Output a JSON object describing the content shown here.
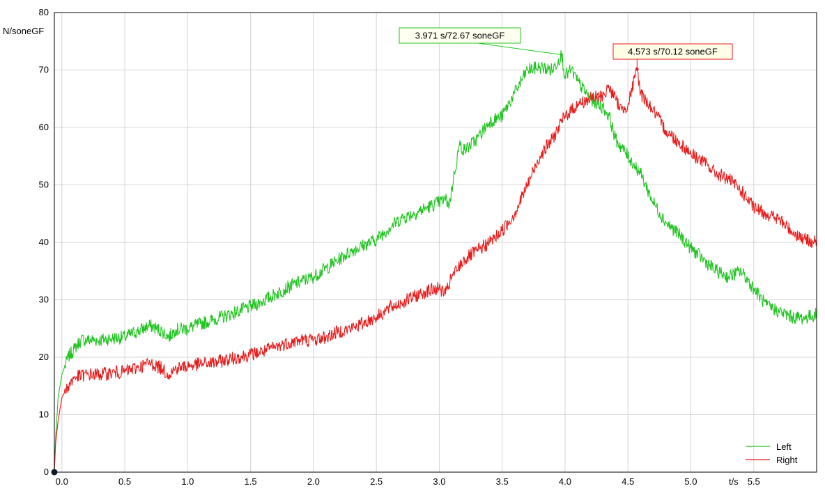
{
  "chart_data": {
    "type": "line",
    "ylabel": "N/soneGF",
    "xlabel": "t/s",
    "xlim": [
      -0.06,
      6.0
    ],
    "ylim": [
      0,
      80
    ],
    "x_ticks": [
      "0.0",
      "0.5",
      "1.0",
      "1.5",
      "2.0",
      "2.5",
      "3.0",
      "3.5",
      "4.0",
      "4.5",
      "5.0",
      "5.5"
    ],
    "y_ticks": [
      "0",
      "10",
      "20",
      "30",
      "40",
      "50",
      "60",
      "70",
      "80"
    ],
    "grid": true,
    "legend_position": "bottom-right",
    "series": [
      {
        "name": "Left",
        "color": "#22c422",
        "points": [
          [
            -0.06,
            0
          ],
          [
            -0.05,
            6
          ],
          [
            -0.03,
            13
          ],
          [
            0.0,
            17
          ],
          [
            0.05,
            20
          ],
          [
            0.1,
            21.5
          ],
          [
            0.15,
            23
          ],
          [
            0.2,
            23
          ],
          [
            0.3,
            23
          ],
          [
            0.4,
            23.3
          ],
          [
            0.5,
            23.5
          ],
          [
            0.6,
            24.5
          ],
          [
            0.7,
            25.5
          ],
          [
            0.8,
            24.5
          ],
          [
            0.85,
            23.5
          ],
          [
            0.9,
            24.8
          ],
          [
            1.0,
            25
          ],
          [
            1.1,
            25.8
          ],
          [
            1.2,
            26.5
          ],
          [
            1.3,
            27.2
          ],
          [
            1.4,
            28
          ],
          [
            1.5,
            28.8
          ],
          [
            1.6,
            29.8
          ],
          [
            1.7,
            31
          ],
          [
            1.8,
            32.2
          ],
          [
            1.9,
            33.2
          ],
          [
            2.0,
            34
          ],
          [
            2.1,
            35.5
          ],
          [
            2.2,
            37
          ],
          [
            2.3,
            38.5
          ],
          [
            2.4,
            39.5
          ],
          [
            2.5,
            40.5
          ],
          [
            2.6,
            42.5
          ],
          [
            2.7,
            44.2
          ],
          [
            2.8,
            45
          ],
          [
            2.9,
            46
          ],
          [
            3.0,
            47
          ],
          [
            3.05,
            47.5
          ],
          [
            3.08,
            46.5
          ],
          [
            3.12,
            52
          ],
          [
            3.16,
            57
          ],
          [
            3.2,
            56
          ],
          [
            3.3,
            58
          ],
          [
            3.4,
            61
          ],
          [
            3.5,
            62
          ],
          [
            3.6,
            66
          ],
          [
            3.7,
            70
          ],
          [
            3.8,
            70.5
          ],
          [
            3.9,
            70
          ],
          [
            3.971,
            72.67
          ],
          [
            4.0,
            69
          ],
          [
            4.05,
            70
          ],
          [
            4.1,
            68
          ],
          [
            4.2,
            65
          ],
          [
            4.3,
            63.5
          ],
          [
            4.35,
            62
          ],
          [
            4.4,
            58
          ],
          [
            4.5,
            55
          ],
          [
            4.6,
            52
          ],
          [
            4.7,
            47
          ],
          [
            4.8,
            43.5
          ],
          [
            4.9,
            41.5
          ],
          [
            5.0,
            39
          ],
          [
            5.1,
            37
          ],
          [
            5.2,
            35
          ],
          [
            5.3,
            34
          ],
          [
            5.4,
            35
          ],
          [
            5.5,
            32
          ],
          [
            5.6,
            29
          ],
          [
            5.7,
            28
          ],
          [
            5.8,
            27
          ],
          [
            5.9,
            26.8
          ],
          [
            6.0,
            27.5
          ]
        ]
      },
      {
        "name": "Right",
        "color": "#e81a1a",
        "points": [
          [
            -0.06,
            0
          ],
          [
            -0.05,
            5
          ],
          [
            -0.03,
            9
          ],
          [
            0.0,
            13
          ],
          [
            0.05,
            15
          ],
          [
            0.1,
            16.5
          ],
          [
            0.2,
            17
          ],
          [
            0.3,
            17
          ],
          [
            0.4,
            17.3
          ],
          [
            0.5,
            17.5
          ],
          [
            0.6,
            18.2
          ],
          [
            0.7,
            19
          ],
          [
            0.8,
            18
          ],
          [
            0.85,
            17
          ],
          [
            0.9,
            18
          ],
          [
            1.0,
            18.5
          ],
          [
            1.1,
            18.8
          ],
          [
            1.2,
            19
          ],
          [
            1.3,
            19.5
          ],
          [
            1.4,
            20
          ],
          [
            1.5,
            20.5
          ],
          [
            1.6,
            21
          ],
          [
            1.7,
            21.8
          ],
          [
            1.8,
            22.5
          ],
          [
            1.9,
            23
          ],
          [
            2.0,
            23
          ],
          [
            2.1,
            23.5
          ],
          [
            2.2,
            24.5
          ],
          [
            2.3,
            25
          ],
          [
            2.4,
            26
          ],
          [
            2.5,
            27
          ],
          [
            2.6,
            28.5
          ],
          [
            2.7,
            29.5
          ],
          [
            2.8,
            30.5
          ],
          [
            2.9,
            31.5
          ],
          [
            3.0,
            32
          ],
          [
            3.05,
            31
          ],
          [
            3.1,
            34
          ],
          [
            3.2,
            37
          ],
          [
            3.3,
            38.5
          ],
          [
            3.4,
            40
          ],
          [
            3.5,
            42
          ],
          [
            3.6,
            45
          ],
          [
            3.7,
            50
          ],
          [
            3.8,
            55
          ],
          [
            3.9,
            58
          ],
          [
            4.0,
            62
          ],
          [
            4.1,
            64
          ],
          [
            4.2,
            65
          ],
          [
            4.3,
            65.5
          ],
          [
            4.35,
            67
          ],
          [
            4.4,
            65
          ],
          [
            4.45,
            63
          ],
          [
            4.5,
            64
          ],
          [
            4.573,
            70.12
          ],
          [
            4.6,
            66
          ],
          [
            4.7,
            63
          ],
          [
            4.8,
            59.5
          ],
          [
            4.9,
            57.5
          ],
          [
            5.0,
            55.5
          ],
          [
            5.1,
            54
          ],
          [
            5.2,
            52
          ],
          [
            5.3,
            51
          ],
          [
            5.4,
            49
          ],
          [
            5.5,
            46
          ],
          [
            5.6,
            45
          ],
          [
            5.7,
            44
          ],
          [
            5.8,
            42
          ],
          [
            5.9,
            40.5
          ],
          [
            6.0,
            40
          ]
        ]
      }
    ],
    "annotations": [
      {
        "series": "Left",
        "x": 3.971,
        "y": 72.67,
        "text": "3.971 s/72.67 soneGF",
        "bg": "#fffff0",
        "border": "#22c422"
      },
      {
        "series": "Right",
        "x": 4.573,
        "y": 70.12,
        "text": "4.573 s/70.12 soneGF",
        "bg": "#ffffe8",
        "border": "#e81a1a"
      }
    ]
  }
}
